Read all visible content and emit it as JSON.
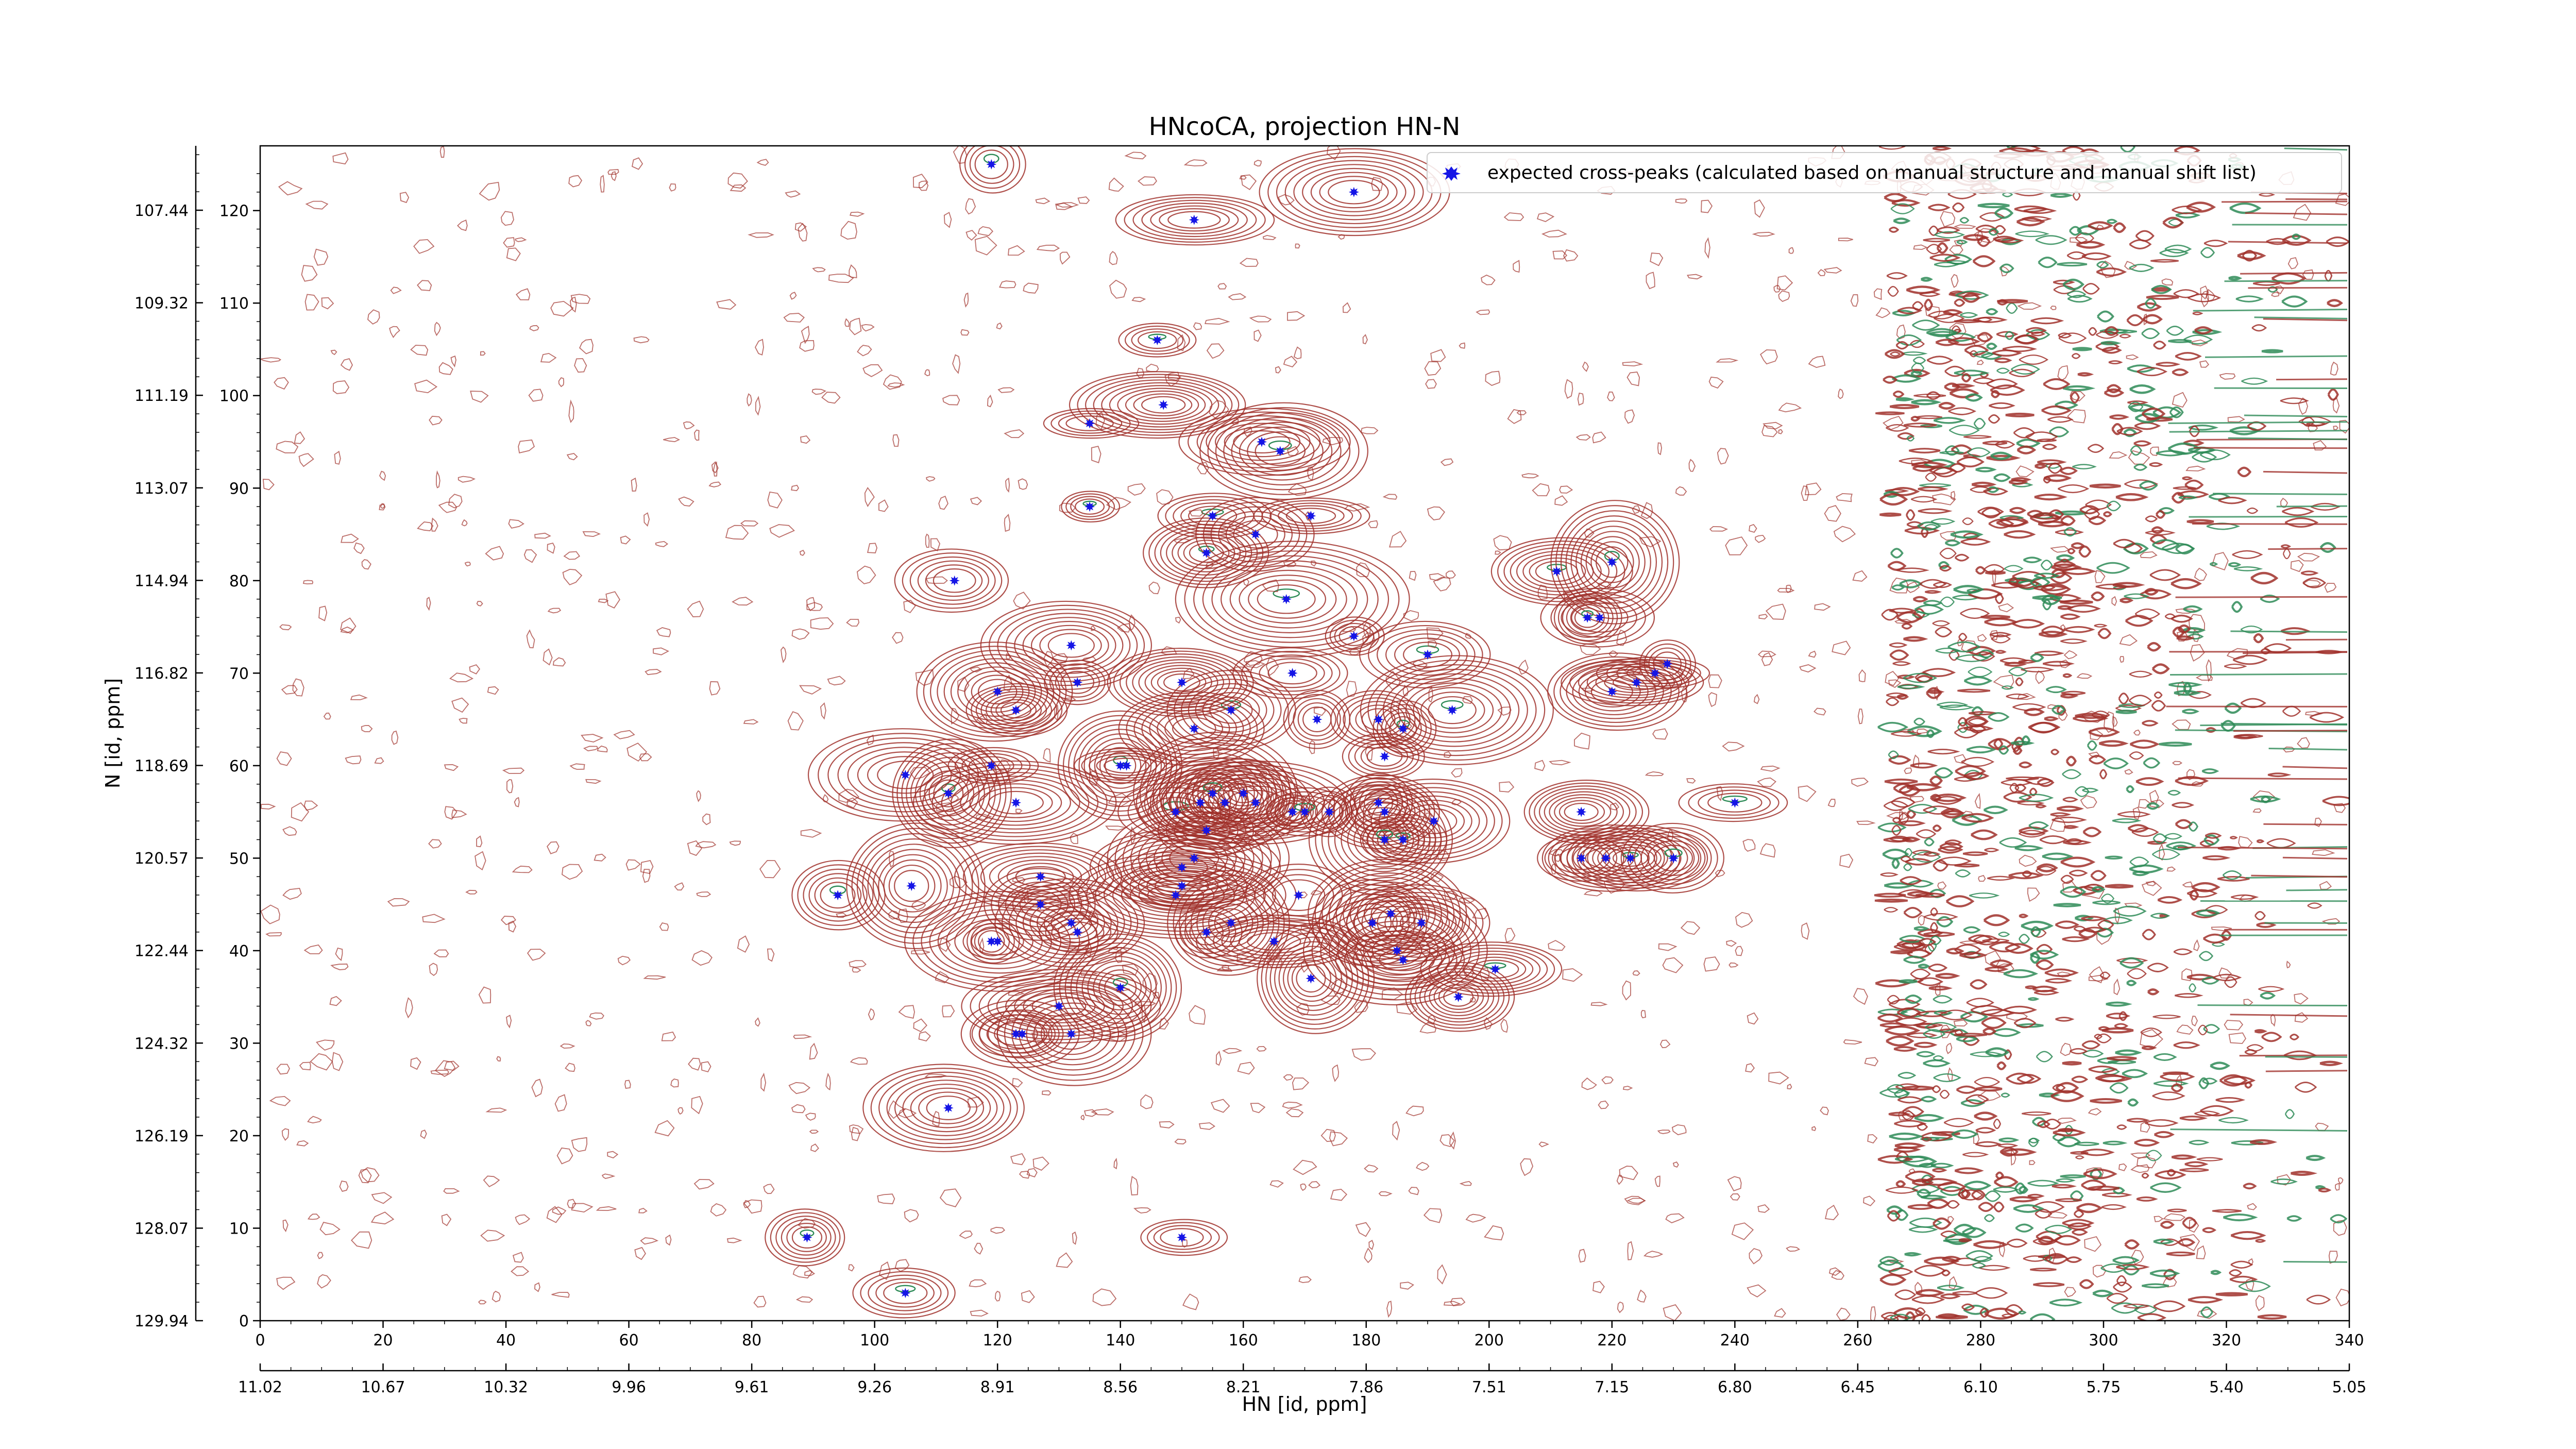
{
  "colors": {
    "positive_contour": "#a0302a",
    "negative_contour": "#2e8b57",
    "marker": "#1515e6",
    "axis": "#000000",
    "background": "#ffffff"
  },
  "chart_data": {
    "type": "scatter",
    "title": "HNcoCA, projection HN-N",
    "xlabel": "HN [id, ppm]",
    "ylabel": "N [id, ppm]",
    "grid": false,
    "legend_position": "top-right",
    "x_index_range": [
      0,
      340
    ],
    "y_index_range": [
      0,
      127
    ],
    "x_index_ticks": [
      "0",
      "20",
      "40",
      "60",
      "80",
      "100",
      "120",
      "140",
      "160",
      "180",
      "200",
      "220",
      "240",
      "260",
      "280",
      "300",
      "320",
      "340"
    ],
    "y_index_ticks": [
      "0",
      "10",
      "20",
      "30",
      "40",
      "50",
      "60",
      "70",
      "80",
      "90",
      "100",
      "110",
      "120"
    ],
    "x_ppm_ticks": [
      "11.02",
      "10.67",
      "10.32",
      "9.96",
      "9.61",
      "9.26",
      "8.91",
      "8.56",
      "8.21",
      "7.86",
      "7.51",
      "7.15",
      "6.80",
      "6.45",
      "6.10",
      "5.75",
      "5.40",
      "5.05"
    ],
    "y_ppm_ticks": [
      "129.94",
      "128.07",
      "126.19",
      "124.32",
      "122.44",
      "120.57",
      "118.69",
      "116.82",
      "114.94",
      "113.07",
      "111.19",
      "109.32",
      "107.44"
    ],
    "series": [
      {
        "name": "expected cross-peaks (calculated based on manual structure and manual shift list)",
        "x": [
          119,
          178,
          152,
          146,
          135,
          147,
          163,
          166,
          155,
          171,
          135,
          154,
          162,
          113,
          158,
          167,
          178,
          211,
          220,
          216,
          218,
          132,
          168,
          190,
          224,
          227,
          229,
          220,
          133,
          120,
          150,
          123,
          172,
          182,
          186,
          183,
          194,
          152,
          119,
          140,
          105,
          112,
          123,
          141,
          149,
          153,
          160,
          157,
          155,
          162,
          168,
          170,
          174,
          191,
          182,
          183,
          186,
          183,
          154,
          152,
          150,
          150,
          149,
          184,
          132,
          106,
          94,
          127,
          127,
          169,
          158,
          181,
          154,
          189,
          185,
          119,
          120,
          133,
          186,
          195,
          201,
          130,
          124,
          140,
          171,
          165,
          132,
          123,
          112,
          150,
          89,
          105,
          215,
          219,
          223,
          230,
          215,
          240
        ],
        "y": [
          125,
          122,
          119,
          106,
          97,
          99,
          95,
          94,
          87,
          87,
          88,
          83,
          85,
          80,
          66,
          78,
          74,
          81,
          82,
          76,
          76,
          73,
          70,
          72,
          69,
          70,
          71,
          68,
          69,
          68,
          69,
          66,
          65,
          65,
          64,
          61,
          66,
          64,
          60,
          60,
          59,
          57,
          56,
          60,
          55,
          56,
          57,
          56,
          57,
          56,
          55,
          55,
          55,
          54,
          56,
          55,
          52,
          52,
          53,
          50,
          49,
          47,
          46,
          44,
          43,
          47,
          46,
          48,
          45,
          46,
          43,
          43,
          42,
          43,
          40,
          41,
          41,
          42,
          39,
          35,
          38,
          34,
          31,
          36,
          37,
          41,
          31,
          31,
          23,
          9,
          9,
          3,
          55,
          50,
          50,
          50,
          50,
          56
        ]
      }
    ]
  }
}
